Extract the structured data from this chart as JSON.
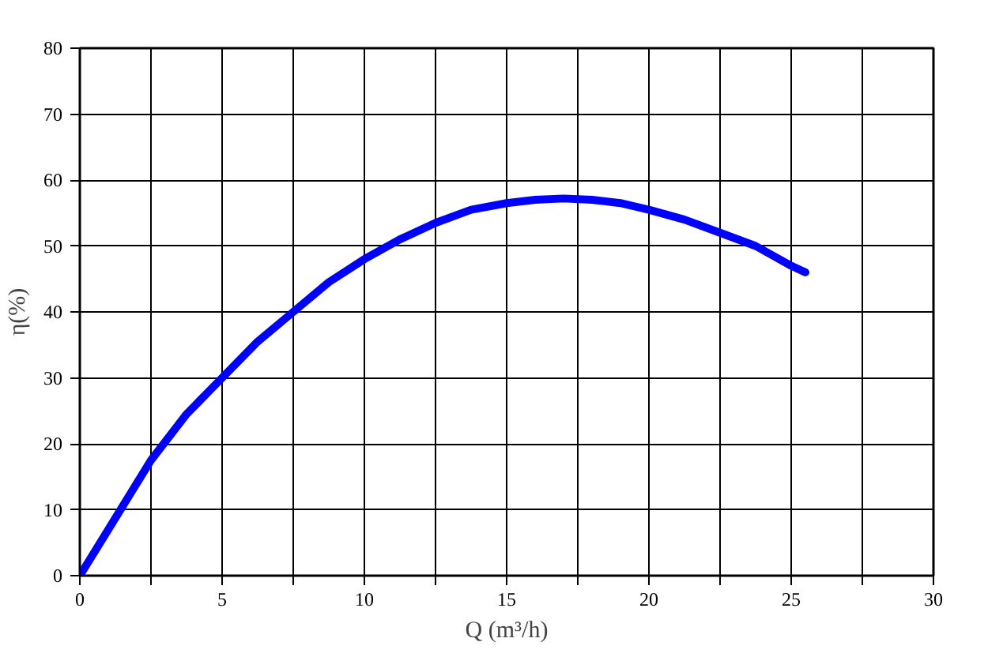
{
  "chart_data": {
    "type": "line",
    "xlabel": "Q (m³/h)",
    "ylabel": "η(%)",
    "x": [
      0,
      1,
      2.5,
      3.75,
      5,
      6.25,
      7.5,
      8.75,
      10,
      11.25,
      12.5,
      13.75,
      15,
      16,
      17,
      18,
      19,
      20,
      21.25,
      22.5,
      23.75,
      25,
      25.5
    ],
    "series": [
      {
        "color": "#0000ff",
        "values": [
          0,
          7,
          17.5,
          24.5,
          30,
          35.5,
          40,
          44.5,
          48,
          51,
          53.5,
          55.5,
          56.5,
          57,
          57.2,
          57,
          56.5,
          55.5,
          54,
          52,
          50,
          47,
          46
        ]
      }
    ],
    "xlim": [
      0,
      30
    ],
    "ylim": [
      0,
      80
    ],
    "xticks": [
      0,
      {
        "value": 2.5,
        "label": null
      },
      5,
      {
        "value": 7.5,
        "label": null
      },
      10,
      {
        "value": 12.5,
        "label": null
      },
      15,
      {
        "value": 17.5,
        "label": null
      },
      20,
      {
        "value": 22.5,
        "label": null
      },
      25,
      {
        "value": 27.5,
        "label": null
      },
      30
    ],
    "yticks": [
      0,
      10,
      20,
      30,
      40,
      50,
      60,
      70,
      80
    ],
    "grid": true,
    "marker": "none",
    "line_style": "solid"
  }
}
